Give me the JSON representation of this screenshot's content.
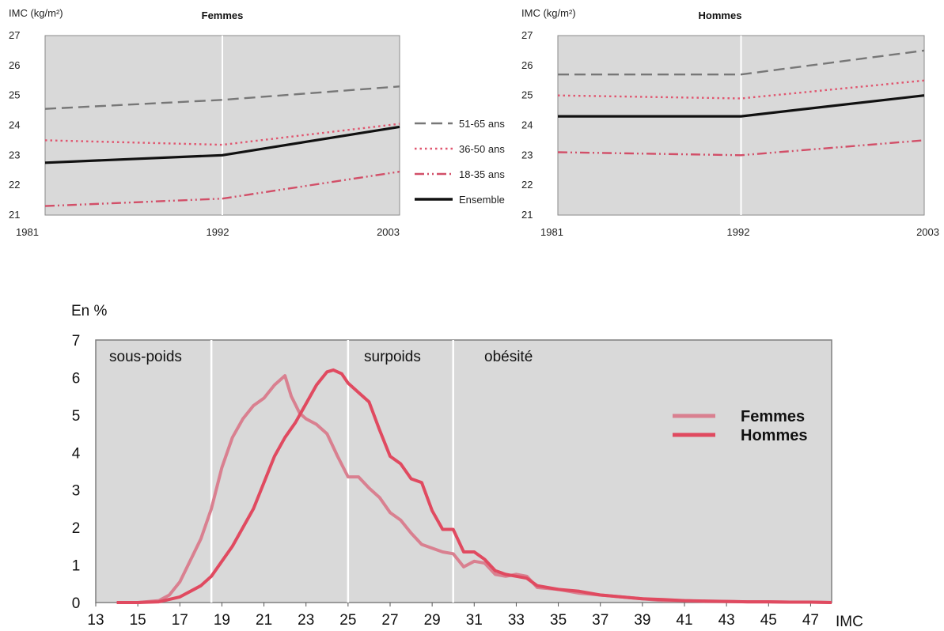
{
  "chart_data": [
    {
      "type": "line",
      "title": "Femmes",
      "ylabel": "IMC (kg/m²)",
      "x": [
        "1981",
        "1992",
        "2003"
      ],
      "ylim": [
        21,
        27
      ],
      "yticks": [
        "21",
        "22",
        "23",
        "24",
        "25",
        "26",
        "27"
      ],
      "series": [
        {
          "name": "51-65 ans",
          "style": "dashed",
          "color": "#777777",
          "values": [
            24.55,
            24.85,
            25.3
          ]
        },
        {
          "name": "36-50 ans",
          "style": "dotted",
          "color": "#e0566f",
          "values": [
            23.5,
            23.35,
            24.05
          ]
        },
        {
          "name": "18-35 ans",
          "style": "dash-dot",
          "color": "#d24f68",
          "values": [
            21.3,
            21.55,
            22.45
          ]
        },
        {
          "name": "Ensemble",
          "style": "solid",
          "color": "#111111",
          "values": [
            22.75,
            23.0,
            23.95
          ]
        }
      ]
    },
    {
      "type": "line",
      "title": "Hommes",
      "ylabel": "IMC (kg/m²)",
      "x": [
        "1981",
        "1992",
        "2003"
      ],
      "ylim": [
        21,
        27
      ],
      "yticks": [
        "21",
        "22",
        "23",
        "24",
        "25",
        "26",
        "27"
      ],
      "series": [
        {
          "name": "51-65 ans",
          "style": "dashed",
          "color": "#777777",
          "values": [
            25.7,
            25.7,
            26.5
          ]
        },
        {
          "name": "36-50 ans",
          "style": "dotted",
          "color": "#e0566f",
          "values": [
            25.0,
            24.9,
            25.5
          ]
        },
        {
          "name": "18-35 ans",
          "style": "dash-dot",
          "color": "#d24f68",
          "values": [
            23.1,
            23.0,
            23.5
          ]
        },
        {
          "name": "Ensemble",
          "style": "solid",
          "color": "#111111",
          "values": [
            24.3,
            24.3,
            25.0
          ]
        }
      ]
    },
    {
      "type": "line",
      "ylabel": "En %",
      "xlabel": "IMC",
      "xlim": [
        13,
        48
      ],
      "ylim": [
        0,
        7
      ],
      "xticks": [
        "13",
        "15",
        "17",
        "19",
        "21",
        "23",
        "25",
        "27",
        "29",
        "31",
        "33",
        "35",
        "37",
        "39",
        "41",
        "43",
        "45",
        "47"
      ],
      "yticks": [
        "0",
        "1",
        "2",
        "3",
        "4",
        "5",
        "6",
        "7"
      ],
      "zones": [
        "sous-poids",
        "surpoids",
        "obésité"
      ],
      "zone_boundaries": [
        18.5,
        25,
        30
      ],
      "series": [
        {
          "name": "Femmes",
          "color": "#d98090",
          "x": [
            14,
            15,
            16,
            16.5,
            17,
            18,
            18.5,
            19,
            19.5,
            20,
            20.5,
            21,
            21.5,
            22,
            22.3,
            22.7,
            23,
            23.5,
            24,
            24.5,
            25,
            25.5,
            26,
            26.5,
            27,
            27.5,
            28,
            28.5,
            29,
            29.5,
            30,
            30.5,
            31,
            31.5,
            32,
            32.5,
            33,
            33.5,
            34,
            35,
            36,
            37,
            38,
            39,
            40,
            41,
            42,
            43,
            44,
            45,
            46,
            47,
            48
          ],
          "y": [
            0,
            0,
            0.05,
            0.2,
            0.55,
            1.7,
            2.5,
            3.6,
            4.4,
            4.9,
            5.25,
            5.45,
            5.8,
            6.05,
            5.5,
            5.05,
            4.9,
            4.75,
            4.5,
            3.9,
            3.35,
            3.35,
            3.05,
            2.8,
            2.4,
            2.2,
            1.85,
            1.55,
            1.45,
            1.35,
            1.3,
            0.95,
            1.1,
            1.05,
            0.75,
            0.7,
            0.75,
            0.7,
            0.4,
            0.35,
            0.25,
            0.2,
            0.15,
            0.1,
            0.05,
            0.05,
            0.03,
            0.03,
            0.02,
            0.02,
            0.01,
            0.01,
            0
          ]
        },
        {
          "name": "Hommes",
          "color": "#e04a60",
          "x": [
            14,
            15,
            16,
            17,
            17.5,
            18,
            18.5,
            19,
            19.5,
            20,
            20.5,
            21,
            21.5,
            22,
            22.5,
            23,
            23.5,
            24,
            24.3,
            24.7,
            25,
            25.5,
            26,
            26.5,
            27,
            27.5,
            28,
            28.5,
            29,
            29.5,
            30,
            30.5,
            31,
            31.5,
            32,
            32.5,
            33,
            33.5,
            34,
            35,
            36,
            37,
            38,
            39,
            40,
            41,
            42,
            43,
            44,
            45,
            46,
            47,
            48
          ],
          "y": [
            0,
            0,
            0.02,
            0.15,
            0.3,
            0.45,
            0.7,
            1.1,
            1.5,
            2.0,
            2.5,
            3.2,
            3.9,
            4.4,
            4.8,
            5.3,
            5.8,
            6.15,
            6.2,
            6.1,
            5.85,
            5.6,
            5.35,
            4.6,
            3.9,
            3.7,
            3.3,
            3.2,
            2.45,
            1.95,
            1.95,
            1.35,
            1.35,
            1.15,
            0.85,
            0.75,
            0.7,
            0.65,
            0.45,
            0.35,
            0.3,
            0.2,
            0.15,
            0.1,
            0.08,
            0.05,
            0.04,
            0.03,
            0.02,
            0.02,
            0.01,
            0.01,
            0
          ]
        }
      ]
    }
  ],
  "legend_top": [
    "51-65 ans",
    "36-50 ans",
    "18-35 ans",
    "Ensemble"
  ],
  "legend_bottom": [
    "Femmes",
    "Hommes"
  ]
}
